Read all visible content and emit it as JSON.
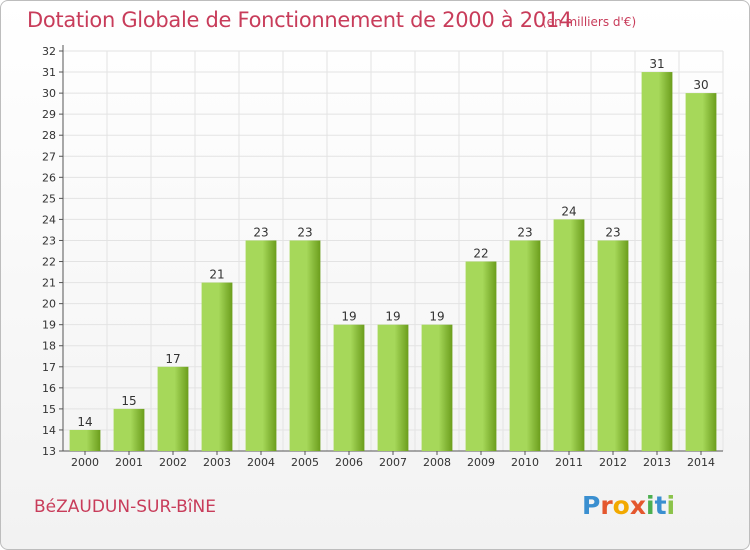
{
  "title": "Dotation Globale de Fonctionnement de 2000 à 2014",
  "subtitle": "(en milliers d'€)",
  "commune": "BéZAUDUN-SUR-BîNE",
  "logo": {
    "text": "Proxiti",
    "letters": [
      "P",
      "r",
      "o",
      "x",
      "i",
      "t",
      "i"
    ],
    "colors": [
      "#3a8fd0",
      "#e4572e",
      "#f2a900",
      "#e4572e",
      "#4caf50",
      "#3a8fd0",
      "#8bc34a"
    ]
  },
  "colors": {
    "bar_light": "#a6d85a",
    "bar_dark": "#6b9d1c",
    "title": "#c83c5a",
    "grid": "#e3e3e3"
  },
  "chart_data": {
    "type": "bar",
    "title": "Dotation Globale de Fonctionnement de 2000 à 2014",
    "xlabel": "",
    "ylabel": "(en milliers d'€)",
    "categories": [
      "2000",
      "2001",
      "2002",
      "2003",
      "2004",
      "2005",
      "2006",
      "2007",
      "2008",
      "2009",
      "2010",
      "2011",
      "2012",
      "2013",
      "2014"
    ],
    "values": [
      14,
      15,
      17,
      21,
      23,
      23,
      19,
      19,
      19,
      22,
      23,
      24,
      23,
      31,
      30
    ],
    "ylim": [
      13,
      32
    ],
    "yticks": [
      13,
      14,
      15,
      16,
      17,
      18,
      19,
      20,
      21,
      22,
      23,
      24,
      25,
      26,
      27,
      28,
      29,
      30,
      31,
      32
    ],
    "grid": true
  }
}
